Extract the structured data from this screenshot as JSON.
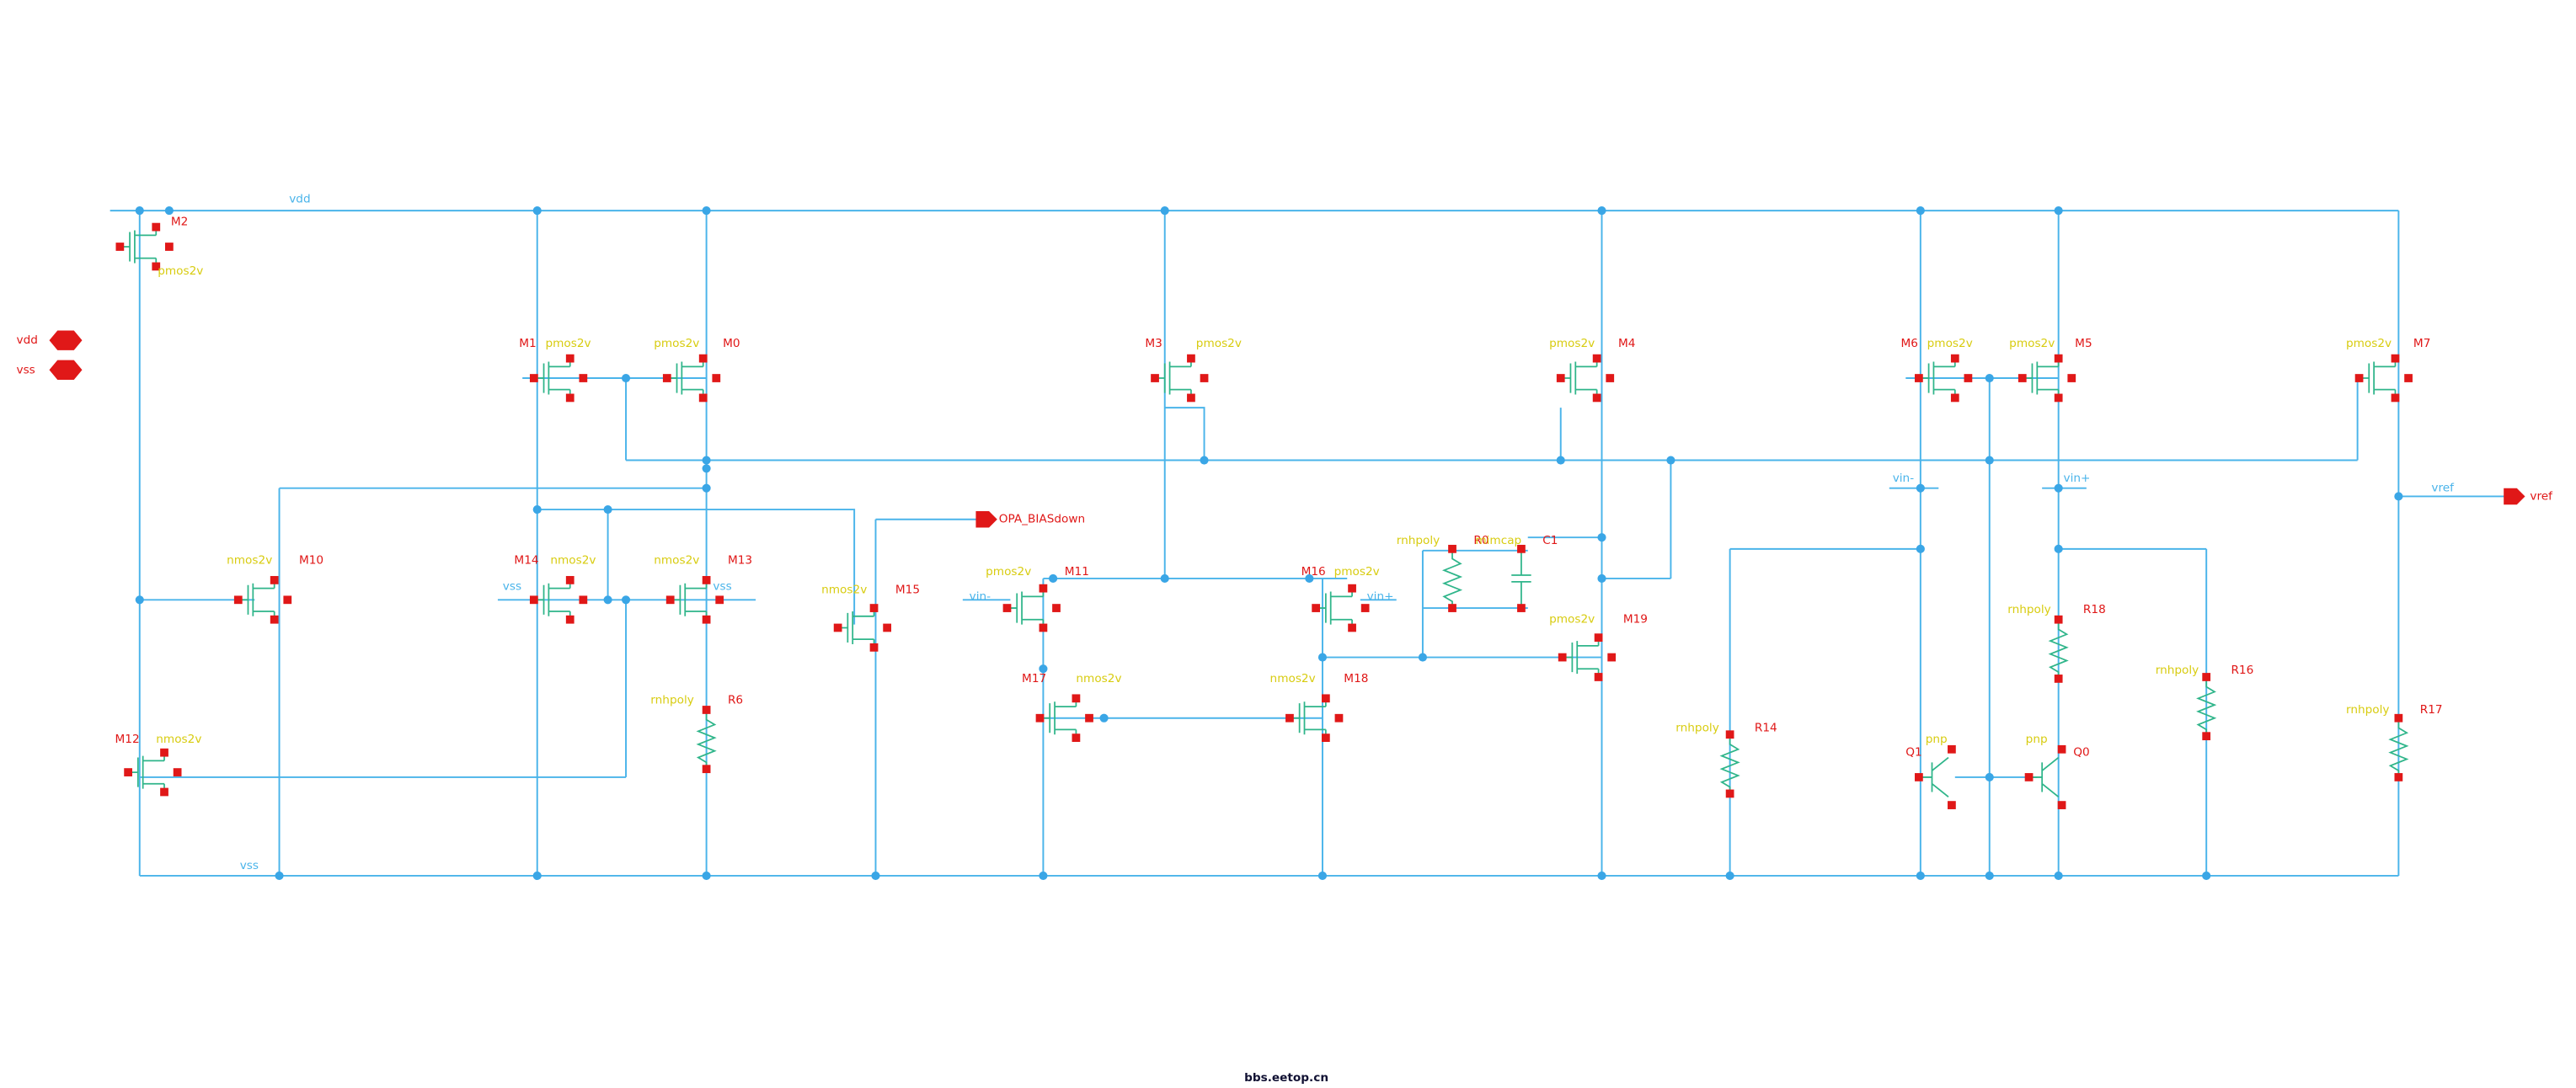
{
  "pins": [
    {
      "label": "vdd"
    },
    {
      "label": "vss"
    }
  ],
  "nets": [
    "vdd",
    "vss",
    "vss",
    "vss",
    "vin-",
    "vin+",
    "vin-",
    "vin+",
    "vref",
    "OPA_BIASdown",
    "vref"
  ],
  "components": [
    {
      "name": "M2",
      "model": "pmos2v"
    },
    {
      "name": "M1",
      "model": "pmos2v"
    },
    {
      "name": "M0",
      "model": "pmos2v"
    },
    {
      "name": "M3",
      "model": "pmos2v"
    },
    {
      "name": "M4",
      "model": "pmos2v"
    },
    {
      "name": "M6",
      "model": "pmos2v"
    },
    {
      "name": "M5",
      "model": "pmos2v"
    },
    {
      "name": "M7",
      "model": "pmos2v"
    },
    {
      "name": "M10",
      "model": "nmos2v"
    },
    {
      "name": "M14",
      "model": "nmos2v"
    },
    {
      "name": "M13",
      "model": "nmos2v"
    },
    {
      "name": "M15",
      "model": "nmos2v"
    },
    {
      "name": "M11",
      "model": "pmos2v"
    },
    {
      "name": "M16",
      "model": "pmos2v"
    },
    {
      "name": "M17",
      "model": "nmos2v"
    },
    {
      "name": "M18",
      "model": "nmos2v"
    },
    {
      "name": "M19",
      "model": "pmos2v"
    },
    {
      "name": "M12",
      "model": "nmos2v"
    },
    {
      "name": "R0",
      "model": "rnhpoly"
    },
    {
      "name": "C1",
      "model": "mimcap"
    },
    {
      "name": "R6",
      "model": "rnhpoly"
    },
    {
      "name": "R14",
      "model": "rnhpoly"
    },
    {
      "name": "R18",
      "model": "rnhpoly"
    },
    {
      "name": "R16",
      "model": "rnhpoly"
    },
    {
      "name": "R17",
      "model": "rnhpoly"
    },
    {
      "name": "Q1",
      "model": "pnp"
    },
    {
      "name": "Q0",
      "model": "pnp"
    }
  ],
  "watermark": "bbs.eetop.cn"
}
